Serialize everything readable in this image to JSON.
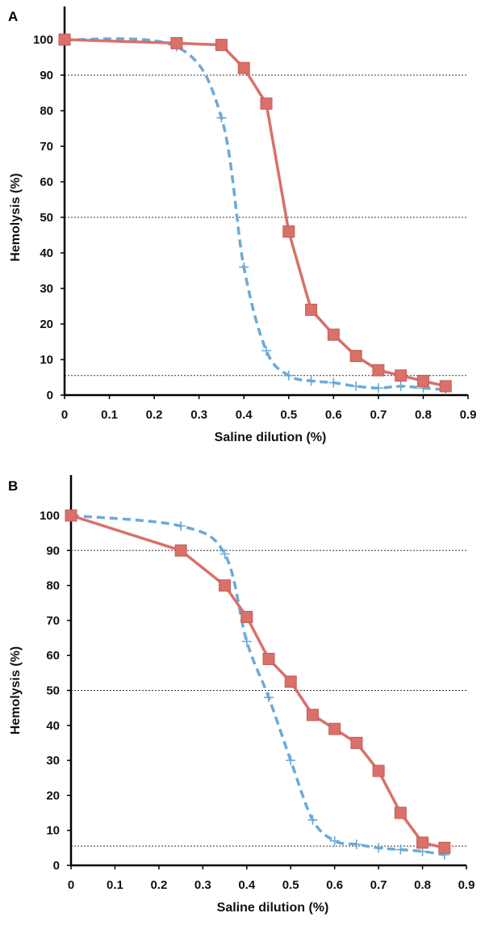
{
  "chart_data": [
    {
      "type": "line",
      "panel_label": "A",
      "xlabel": "Saline dilution (%)",
      "ylabel": "Hemolysis (%)",
      "xlim": [
        0,
        0.9
      ],
      "ylim": [
        0,
        100
      ],
      "x_ticks": [
        "0",
        "0.1",
        "0.2",
        "0.3",
        "0.4",
        "0.5",
        "0.6",
        "0.7",
        "0.8",
        "0.9"
      ],
      "y_ticks": [
        "0",
        "10",
        "20",
        "30",
        "40",
        "50",
        "60",
        "70",
        "80",
        "90",
        "100"
      ],
      "reference_lines": [
        90,
        50,
        5.5
      ],
      "series": [
        {
          "color": "#d9706a",
          "style": "solid",
          "marker": "square",
          "x": [
            0,
            0.25,
            0.35,
            0.4,
            0.45,
            0.5,
            0.55,
            0.6,
            0.65,
            0.7,
            0.75,
            0.8,
            0.85
          ],
          "values": [
            100,
            99,
            98.5,
            92,
            82,
            46,
            24,
            17,
            11,
            7,
            5.5,
            4,
            2.5
          ]
        },
        {
          "color": "#6aaad8",
          "style": "dashed",
          "marker": "plus",
          "x": [
            0,
            0.25,
            0.35,
            0.4,
            0.45,
            0.5,
            0.55,
            0.6,
            0.65,
            0.7,
            0.75,
            0.8,
            0.85
          ],
          "values": [
            100,
            98,
            78,
            36,
            12.5,
            5.5,
            4,
            3.5,
            2.5,
            2,
            2.5,
            2,
            1.5
          ]
        }
      ]
    },
    {
      "type": "line",
      "panel_label": "B",
      "xlabel": "Saline dilution (%)",
      "ylabel": "Hemolysis (%)",
      "xlim": [
        0,
        0.9
      ],
      "ylim": [
        0,
        100
      ],
      "x_ticks": [
        "0",
        "0.1",
        "0.2",
        "0.3",
        "0.4",
        "0.5",
        "0.6",
        "0.7",
        "0.8",
        "0.9"
      ],
      "y_ticks": [
        "0",
        "10",
        "20",
        "30",
        "40",
        "50",
        "60",
        "70",
        "80",
        "90",
        "100"
      ],
      "reference_lines": [
        90,
        50,
        5.5
      ],
      "series": [
        {
          "color": "#d9706a",
          "style": "solid",
          "marker": "square",
          "x": [
            0,
            0.25,
            0.35,
            0.4,
            0.45,
            0.5,
            0.55,
            0.6,
            0.65,
            0.7,
            0.75,
            0.8,
            0.85
          ],
          "values": [
            100,
            90,
            80,
            71,
            59,
            52.5,
            43,
            39,
            35,
            27,
            15,
            6.5,
            5
          ]
        },
        {
          "color": "#6aaad8",
          "style": "dashed",
          "marker": "plus",
          "x": [
            0,
            0.25,
            0.35,
            0.4,
            0.45,
            0.5,
            0.55,
            0.6,
            0.65,
            0.7,
            0.75,
            0.8,
            0.85
          ],
          "values": [
            100,
            97,
            89,
            64,
            48,
            30,
            13,
            7,
            6,
            5,
            4.5,
            4,
            3
          ]
        }
      ]
    }
  ]
}
